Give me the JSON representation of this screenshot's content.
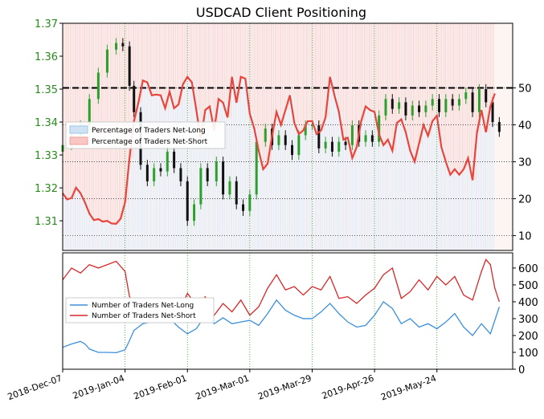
{
  "chart_data": [
    {
      "type": "candlestick+line",
      "title": "USDCAD Client Positioning",
      "x_ticks": [
        "2018-Dec-07",
        "2019-Jan-04",
        "2019-Feb-01",
        "2019-Mar-01",
        "2019-Mar-29",
        "2019-Apr-26",
        "2019-May-24"
      ],
      "x_range_days": [
        0,
        202
      ],
      "x_tick_days": [
        0,
        28,
        56,
        84,
        112,
        140,
        168
      ],
      "y_left_range": [
        1.301,
        1.37
      ],
      "y_left_ticks": [
        "1.31",
        "1.32",
        "1.33",
        "1.34",
        "1.35",
        "1.36",
        "1.37"
      ],
      "y_right_range": [
        6,
        67.5
      ],
      "y_right_ticks": [
        "10",
        "20",
        "30",
        "40",
        "50"
      ],
      "reference_line_right": 50,
      "grid": true,
      "legend_position": "left-middle",
      "legend": [
        {
          "label": "Percentage of Traders Net-Long",
          "color": "#9ec8ea"
        },
        {
          "label": "Percentage of Traders Net-Short",
          "color": "#f4a09a"
        }
      ],
      "price_closes": [
        {
          "x": 0,
          "y": 1.333
        },
        {
          "x": 4,
          "y": 1.336
        },
        {
          "x": 8,
          "y": 1.339
        },
        {
          "x": 12,
          "y": 1.347
        },
        {
          "x": 16,
          "y": 1.355
        },
        {
          "x": 20,
          "y": 1.362
        },
        {
          "x": 24,
          "y": 1.364
        },
        {
          "x": 27,
          "y": 1.363
        },
        {
          "x": 30,
          "y": 1.351
        },
        {
          "x": 32,
          "y": 1.343
        },
        {
          "x": 35,
          "y": 1.327
        },
        {
          "x": 38,
          "y": 1.322
        },
        {
          "x": 41,
          "y": 1.326
        },
        {
          "x": 44,
          "y": 1.325
        },
        {
          "x": 47,
          "y": 1.331
        },
        {
          "x": 50,
          "y": 1.326
        },
        {
          "x": 53,
          "y": 1.322
        },
        {
          "x": 56,
          "y": 1.31
        },
        {
          "x": 59,
          "y": 1.315
        },
        {
          "x": 62,
          "y": 1.326
        },
        {
          "x": 65,
          "y": 1.322
        },
        {
          "x": 69,
          "y": 1.328
        },
        {
          "x": 72,
          "y": 1.318
        },
        {
          "x": 75,
          "y": 1.322
        },
        {
          "x": 78,
          "y": 1.315
        },
        {
          "x": 81,
          "y": 1.313
        },
        {
          "x": 84,
          "y": 1.318
        },
        {
          "x": 87,
          "y": 1.334
        },
        {
          "x": 91,
          "y": 1.338
        },
        {
          "x": 94,
          "y": 1.333
        },
        {
          "x": 97,
          "y": 1.336
        },
        {
          "x": 100,
          "y": 1.333
        },
        {
          "x": 103,
          "y": 1.33
        },
        {
          "x": 106,
          "y": 1.336
        },
        {
          "x": 109,
          "y": 1.339
        },
        {
          "x": 112,
          "y": 1.339
        },
        {
          "x": 115,
          "y": 1.332
        },
        {
          "x": 118,
          "y": 1.334
        },
        {
          "x": 121,
          "y": 1.331
        },
        {
          "x": 124,
          "y": 1.334
        },
        {
          "x": 127,
          "y": 1.333
        },
        {
          "x": 130,
          "y": 1.339
        },
        {
          "x": 133,
          "y": 1.334
        },
        {
          "x": 136,
          "y": 1.336
        },
        {
          "x": 139,
          "y": 1.334
        },
        {
          "x": 142,
          "y": 1.342
        },
        {
          "x": 145,
          "y": 1.347
        },
        {
          "x": 148,
          "y": 1.344
        },
        {
          "x": 151,
          "y": 1.346
        },
        {
          "x": 154,
          "y": 1.342
        },
        {
          "x": 157,
          "y": 1.345
        },
        {
          "x": 160,
          "y": 1.343
        },
        {
          "x": 163,
          "y": 1.345
        },
        {
          "x": 166,
          "y": 1.347
        },
        {
          "x": 169,
          "y": 1.343
        },
        {
          "x": 172,
          "y": 1.347
        },
        {
          "x": 175,
          "y": 1.345
        },
        {
          "x": 178,
          "y": 1.347
        },
        {
          "x": 181,
          "y": 1.349
        },
        {
          "x": 184,
          "y": 1.343
        },
        {
          "x": 187,
          "y": 1.35
        },
        {
          "x": 190,
          "y": 1.346
        },
        {
          "x": 193,
          "y": 1.34
        },
        {
          "x": 196,
          "y": 1.337
        }
      ],
      "net_short_pct": [
        {
          "x": 0,
          "y": 21.5
        },
        {
          "x": 2,
          "y": 19.8
        },
        {
          "x": 4,
          "y": 20.2
        },
        {
          "x": 6,
          "y": 23.0
        },
        {
          "x": 8,
          "y": 21.5
        },
        {
          "x": 10,
          "y": 19.0
        },
        {
          "x": 12,
          "y": 16.0
        },
        {
          "x": 14,
          "y": 14.2
        },
        {
          "x": 16,
          "y": 14.5
        },
        {
          "x": 18,
          "y": 13.8
        },
        {
          "x": 20,
          "y": 14.0
        },
        {
          "x": 22,
          "y": 13.3
        },
        {
          "x": 24,
          "y": 13.2
        },
        {
          "x": 26,
          "y": 14.6
        },
        {
          "x": 28,
          "y": 19.0
        },
        {
          "x": 30,
          "y": 31.0
        },
        {
          "x": 32,
          "y": 41.0
        },
        {
          "x": 34,
          "y": 46.0
        },
        {
          "x": 36,
          "y": 52.0
        },
        {
          "x": 38,
          "y": 51.5
        },
        {
          "x": 40,
          "y": 48.0
        },
        {
          "x": 42,
          "y": 48.2
        },
        {
          "x": 44,
          "y": 48.0
        },
        {
          "x": 46,
          "y": 44.5
        },
        {
          "x": 48,
          "y": 49.0
        },
        {
          "x": 50,
          "y": 44.5
        },
        {
          "x": 52,
          "y": 45.5
        },
        {
          "x": 54,
          "y": 51.0
        },
        {
          "x": 56,
          "y": 53.0
        },
        {
          "x": 58,
          "y": 51.5
        },
        {
          "x": 60,
          "y": 44.0
        },
        {
          "x": 62,
          "y": 36.0
        },
        {
          "x": 64,
          "y": 44.0
        },
        {
          "x": 66,
          "y": 45.0
        },
        {
          "x": 68,
          "y": 38.5
        },
        {
          "x": 70,
          "y": 47.0
        },
        {
          "x": 72,
          "y": 46.0
        },
        {
          "x": 74,
          "y": 42.0
        },
        {
          "x": 76,
          "y": 53.0
        },
        {
          "x": 78,
          "y": 46.0
        },
        {
          "x": 80,
          "y": 53.0
        },
        {
          "x": 82,
          "y": 52.5
        },
        {
          "x": 84,
          "y": 43.0
        },
        {
          "x": 86,
          "y": 39.0
        },
        {
          "x": 88,
          "y": 33.0
        },
        {
          "x": 90,
          "y": 28.0
        },
        {
          "x": 92,
          "y": 29.5
        },
        {
          "x": 94,
          "y": 37.0
        },
        {
          "x": 96,
          "y": 43.5
        },
        {
          "x": 98,
          "y": 40.0
        },
        {
          "x": 100,
          "y": 44.0
        },
        {
          "x": 102,
          "y": 48.0
        },
        {
          "x": 104,
          "y": 40.5
        },
        {
          "x": 106,
          "y": 37.5
        },
        {
          "x": 108,
          "y": 38.5
        },
        {
          "x": 110,
          "y": 41.0
        },
        {
          "x": 112,
          "y": 41.0
        },
        {
          "x": 114,
          "y": 37.5
        },
        {
          "x": 116,
          "y": 38.5
        },
        {
          "x": 118,
          "y": 42.0
        },
        {
          "x": 120,
          "y": 53.0
        },
        {
          "x": 122,
          "y": 48.0
        },
        {
          "x": 124,
          "y": 43.5
        },
        {
          "x": 126,
          "y": 36.0
        },
        {
          "x": 128,
          "y": 36.5
        },
        {
          "x": 130,
          "y": 31.0
        },
        {
          "x": 132,
          "y": 34.0
        },
        {
          "x": 134,
          "y": 41.0
        },
        {
          "x": 136,
          "y": 45.0
        },
        {
          "x": 138,
          "y": 44.0
        },
        {
          "x": 140,
          "y": 43.5
        },
        {
          "x": 142,
          "y": 37.5
        },
        {
          "x": 144,
          "y": 34.5
        },
        {
          "x": 146,
          "y": 36.0
        },
        {
          "x": 148,
          "y": 33.0
        },
        {
          "x": 150,
          "y": 40.5
        },
        {
          "x": 152,
          "y": 41.5
        },
        {
          "x": 154,
          "y": 38.0
        },
        {
          "x": 156,
          "y": 33.0
        },
        {
          "x": 158,
          "y": 30.0
        },
        {
          "x": 160,
          "y": 35.0
        },
        {
          "x": 162,
          "y": 40.0
        },
        {
          "x": 164,
          "y": 37.0
        },
        {
          "x": 166,
          "y": 41.0
        },
        {
          "x": 168,
          "y": 42.5
        },
        {
          "x": 170,
          "y": 34.0
        },
        {
          "x": 172,
          "y": 30.0
        },
        {
          "x": 174,
          "y": 26.5
        },
        {
          "x": 176,
          "y": 28.0
        },
        {
          "x": 178,
          "y": 26.5
        },
        {
          "x": 180,
          "y": 28.0
        },
        {
          "x": 182,
          "y": 31.0
        },
        {
          "x": 184,
          "y": 25.0
        },
        {
          "x": 186,
          "y": 38.0
        },
        {
          "x": 188,
          "y": 44.0
        },
        {
          "x": 190,
          "y": 38.0
        },
        {
          "x": 192,
          "y": 45.0
        },
        {
          "x": 194,
          "y": 48.5
        }
      ]
    },
    {
      "type": "line",
      "y_range": [
        0,
        690
      ],
      "y_ticks": [
        "0",
        "100",
        "200",
        "300",
        "400",
        "500",
        "600"
      ],
      "grid": true,
      "legend_position": "left-middle",
      "series": [
        {
          "name": "Number of Traders Net-Long",
          "color": "#3b8fdb",
          "points": [
            {
              "x": 0,
              "y": 130
            },
            {
              "x": 4,
              "y": 150
            },
            {
              "x": 8,
              "y": 165
            },
            {
              "x": 10,
              "y": 150
            },
            {
              "x": 12,
              "y": 120
            },
            {
              "x": 16,
              "y": 100
            },
            {
              "x": 20,
              "y": 100
            },
            {
              "x": 24,
              "y": 98
            },
            {
              "x": 28,
              "y": 115
            },
            {
              "x": 30,
              "y": 170
            },
            {
              "x": 32,
              "y": 230
            },
            {
              "x": 36,
              "y": 270
            },
            {
              "x": 40,
              "y": 280
            },
            {
              "x": 44,
              "y": 290
            },
            {
              "x": 48,
              "y": 300
            },
            {
              "x": 52,
              "y": 250
            },
            {
              "x": 56,
              "y": 210
            },
            {
              "x": 60,
              "y": 240
            },
            {
              "x": 64,
              "y": 320
            },
            {
              "x": 68,
              "y": 270
            },
            {
              "x": 72,
              "y": 305
            },
            {
              "x": 76,
              "y": 270
            },
            {
              "x": 80,
              "y": 280
            },
            {
              "x": 84,
              "y": 290
            },
            {
              "x": 88,
              "y": 260
            },
            {
              "x": 92,
              "y": 330
            },
            {
              "x": 96,
              "y": 410
            },
            {
              "x": 100,
              "y": 350
            },
            {
              "x": 104,
              "y": 320
            },
            {
              "x": 108,
              "y": 300
            },
            {
              "x": 112,
              "y": 300
            },
            {
              "x": 116,
              "y": 340
            },
            {
              "x": 120,
              "y": 390
            },
            {
              "x": 124,
              "y": 330
            },
            {
              "x": 128,
              "y": 280
            },
            {
              "x": 132,
              "y": 250
            },
            {
              "x": 136,
              "y": 260
            },
            {
              "x": 140,
              "y": 320
            },
            {
              "x": 144,
              "y": 400
            },
            {
              "x": 148,
              "y": 360
            },
            {
              "x": 152,
              "y": 270
            },
            {
              "x": 156,
              "y": 300
            },
            {
              "x": 160,
              "y": 250
            },
            {
              "x": 164,
              "y": 270
            },
            {
              "x": 168,
              "y": 240
            },
            {
              "x": 172,
              "y": 280
            },
            {
              "x": 176,
              "y": 330
            },
            {
              "x": 180,
              "y": 250
            },
            {
              "x": 184,
              "y": 200
            },
            {
              "x": 188,
              "y": 270
            },
            {
              "x": 192,
              "y": 210
            },
            {
              "x": 196,
              "y": 370
            }
          ]
        },
        {
          "name": "Number of Traders Net-Short",
          "color": "#d62728",
          "points": [
            {
              "x": 0,
              "y": 530
            },
            {
              "x": 4,
              "y": 600
            },
            {
              "x": 8,
              "y": 570
            },
            {
              "x": 12,
              "y": 620
            },
            {
              "x": 16,
              "y": 600
            },
            {
              "x": 20,
              "y": 620
            },
            {
              "x": 24,
              "y": 640
            },
            {
              "x": 28,
              "y": 580
            },
            {
              "x": 30,
              "y": 430
            },
            {
              "x": 32,
              "y": 390
            },
            {
              "x": 36,
              "y": 350
            },
            {
              "x": 40,
              "y": 390
            },
            {
              "x": 44,
              "y": 350
            },
            {
              "x": 48,
              "y": 370
            },
            {
              "x": 52,
              "y": 330
            },
            {
              "x": 56,
              "y": 450
            },
            {
              "x": 60,
              "y": 380
            },
            {
              "x": 64,
              "y": 430
            },
            {
              "x": 68,
              "y": 320
            },
            {
              "x": 72,
              "y": 390
            },
            {
              "x": 76,
              "y": 340
            },
            {
              "x": 80,
              "y": 410
            },
            {
              "x": 84,
              "y": 320
            },
            {
              "x": 88,
              "y": 370
            },
            {
              "x": 92,
              "y": 480
            },
            {
              "x": 96,
              "y": 560
            },
            {
              "x": 100,
              "y": 470
            },
            {
              "x": 104,
              "y": 490
            },
            {
              "x": 108,
              "y": 440
            },
            {
              "x": 112,
              "y": 490
            },
            {
              "x": 116,
              "y": 470
            },
            {
              "x": 120,
              "y": 550
            },
            {
              "x": 124,
              "y": 420
            },
            {
              "x": 128,
              "y": 430
            },
            {
              "x": 132,
              "y": 390
            },
            {
              "x": 136,
              "y": 440
            },
            {
              "x": 140,
              "y": 480
            },
            {
              "x": 144,
              "y": 560
            },
            {
              "x": 148,
              "y": 600
            },
            {
              "x": 152,
              "y": 420
            },
            {
              "x": 156,
              "y": 460
            },
            {
              "x": 160,
              "y": 530
            },
            {
              "x": 164,
              "y": 470
            },
            {
              "x": 168,
              "y": 550
            },
            {
              "x": 172,
              "y": 500
            },
            {
              "x": 176,
              "y": 550
            },
            {
              "x": 180,
              "y": 440
            },
            {
              "x": 184,
              "y": 410
            },
            {
              "x": 188,
              "y": 580
            },
            {
              "x": 190,
              "y": 650
            },
            {
              "x": 192,
              "y": 620
            },
            {
              "x": 194,
              "y": 480
            },
            {
              "x": 196,
              "y": 400
            }
          ]
        }
      ]
    }
  ]
}
